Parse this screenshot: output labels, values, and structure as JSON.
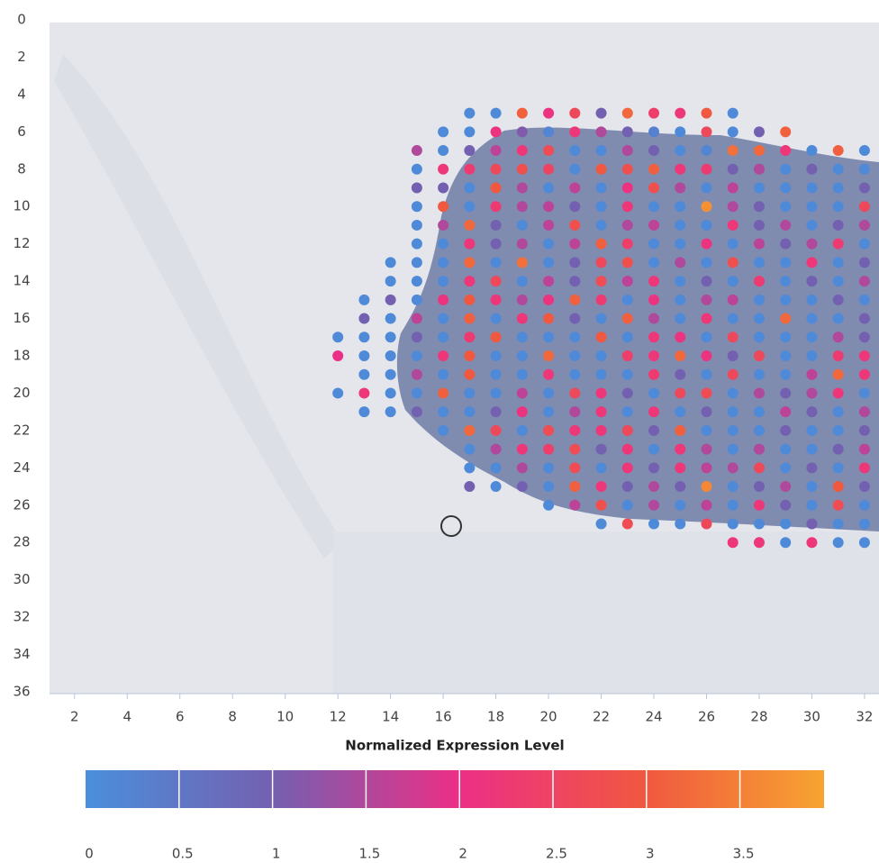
{
  "chart_data": {
    "type": "scatter",
    "xlim": [
      1.05,
      32.55
    ],
    "ylim": [
      0,
      36
    ],
    "xticks": [
      2,
      4,
      6,
      8,
      10,
      12,
      14,
      16,
      18,
      20,
      22,
      24,
      26,
      28,
      30,
      32
    ],
    "yticks": [
      0,
      2,
      4,
      6,
      8,
      10,
      12,
      14,
      16,
      18,
      20,
      22,
      24,
      26,
      28,
      30,
      32,
      34,
      36
    ],
    "colorbar": {
      "title": "Normalized Expression Level",
      "range": [
        0,
        3.95
      ],
      "ticks": [
        0,
        0.5,
        1,
        1.5,
        2,
        2.5,
        3,
        3.5
      ],
      "colorscale": [
        {
          "value": 0,
          "color": "#4a8fdc"
        },
        {
          "value": 1,
          "color": "#7460b0"
        },
        {
          "value": 2,
          "color": "#ec2f86"
        },
        {
          "value": 3,
          "color": "#f0583f"
        },
        {
          "value": 3.95,
          "color": "#f7a431"
        }
      ]
    },
    "rows": [
      {
        "y": 5,
        "x": [
          17,
          18,
          19,
          20,
          21,
          22,
          23,
          24,
          25,
          26,
          27
        ],
        "values": [
          0.1,
          0.1,
          3.1,
          2.1,
          2.6,
          1.0,
          3.2,
          2.4,
          2.2,
          3.0,
          0.1
        ]
      },
      {
        "y": 6,
        "x": [
          16,
          17,
          18,
          19,
          20,
          21,
          22,
          23,
          24,
          25,
          26,
          27,
          28,
          29
        ],
        "values": [
          0.1,
          0.1,
          2.1,
          1.1,
          0.2,
          2.2,
          1.5,
          1.0,
          0.3,
          0.1,
          2.6,
          0.1,
          1.0,
          3.1
        ]
      },
      {
        "y": 7,
        "x": [
          15,
          16,
          17,
          18,
          19,
          20,
          21,
          22,
          23,
          24,
          25,
          26,
          27,
          28,
          29,
          30,
          31,
          32
        ],
        "values": [
          1.5,
          0.1,
          1.0,
          1.6,
          2.2,
          2.7,
          0.1,
          0.1,
          1.5,
          1.0,
          0.1,
          0.2,
          3.3,
          3.2,
          2.2,
          0.1,
          3.1,
          0.1
        ]
      },
      {
        "y": 8,
        "x": [
          15,
          16,
          17,
          18,
          19,
          20,
          21,
          22,
          23,
          24,
          25,
          26,
          27,
          28,
          29,
          30,
          31,
          32
        ],
        "values": [
          0.1,
          2.2,
          2.3,
          2.6,
          2.8,
          2.5,
          0.1,
          3.0,
          2.8,
          3.1,
          2.2,
          2.3,
          1.0,
          1.5,
          0.1,
          1.0,
          0.1,
          0.1
        ]
      },
      {
        "y": 9,
        "x": [
          15,
          16,
          17,
          18,
          19,
          20,
          21,
          22,
          23,
          24,
          25,
          26,
          27,
          28,
          29,
          30,
          31,
          32
        ],
        "values": [
          1.0,
          1.0,
          0.1,
          3.0,
          1.5,
          0.1,
          1.6,
          0.1,
          2.1,
          2.8,
          1.5,
          0.1,
          1.6,
          0.1,
          0.1,
          0.1,
          0.1,
          1.0
        ]
      },
      {
        "y": 10,
        "x": [
          15,
          16,
          17,
          18,
          19,
          20,
          21,
          22,
          23,
          24,
          25,
          26,
          27,
          28,
          29,
          30,
          31,
          32
        ],
        "values": [
          0.1,
          3.0,
          0.1,
          2.3,
          1.5,
          1.6,
          1.0,
          0.1,
          2.2,
          0.1,
          0.1,
          3.7,
          1.5,
          1.0,
          0.1,
          0.1,
          0.1,
          2.6
        ]
      },
      {
        "y": 11,
        "x": [
          15,
          16,
          17,
          18,
          19,
          20,
          21,
          22,
          23,
          24,
          25,
          26,
          27,
          28,
          29,
          30,
          31,
          32
        ],
        "values": [
          0.1,
          1.5,
          3.2,
          1.0,
          0.1,
          1.6,
          2.8,
          0.1,
          1.5,
          1.6,
          0.1,
          0.1,
          2.2,
          1.0,
          1.5,
          0.1,
          1.0,
          1.5
        ]
      },
      {
        "y": 12,
        "x": [
          15,
          16,
          17,
          18,
          19,
          20,
          21,
          22,
          23,
          24,
          25,
          26,
          27,
          28,
          29,
          30,
          31,
          32
        ],
        "values": [
          0.1,
          0.1,
          2.2,
          1.0,
          1.5,
          0.1,
          1.6,
          3.1,
          2.4,
          0.1,
          0.1,
          2.1,
          0.1,
          1.6,
          1.0,
          1.5,
          2.3,
          0.1
        ]
      },
      {
        "y": 13,
        "x": [
          14,
          15,
          16,
          17,
          18,
          19,
          20,
          21,
          22,
          23,
          24,
          25,
          26,
          27,
          28,
          29,
          30,
          31,
          32
        ],
        "values": [
          0.1,
          0.1,
          0.1,
          3.2,
          0.1,
          3.3,
          0.1,
          1.0,
          2.6,
          2.8,
          0.1,
          1.5,
          0.1,
          2.8,
          0.1,
          0.1,
          2.2,
          0.1,
          1.0
        ]
      },
      {
        "y": 14,
        "x": [
          14,
          15,
          16,
          17,
          18,
          19,
          20,
          21,
          22,
          23,
          24,
          25,
          26,
          27,
          28,
          29,
          30,
          31,
          32
        ],
        "values": [
          0.1,
          0.1,
          0.1,
          2.2,
          2.6,
          0.1,
          1.6,
          1.0,
          2.7,
          1.6,
          2.2,
          0.1,
          1.0,
          0.1,
          2.3,
          0.1,
          1.0,
          0.1,
          1.5
        ]
      },
      {
        "y": 15,
        "x": [
          13,
          14,
          15,
          16,
          17,
          18,
          19,
          20,
          21,
          22,
          23,
          24,
          25,
          26,
          27,
          28,
          29,
          30,
          31,
          32
        ],
        "values": [
          0.1,
          1.0,
          0.1,
          2.1,
          3.0,
          2.2,
          1.5,
          2.1,
          3.1,
          2.3,
          0.1,
          2.1,
          0.1,
          1.5,
          1.6,
          0.1,
          0.1,
          0.1,
          1.0,
          0.1
        ]
      },
      {
        "y": 16,
        "x": [
          13,
          14,
          15,
          16,
          17,
          18,
          19,
          20,
          21,
          22,
          23,
          24,
          25,
          26,
          27,
          28,
          29,
          30,
          31,
          32
        ],
        "values": [
          1.0,
          0.1,
          1.6,
          0.1,
          3.1,
          0.1,
          2.2,
          3.0,
          1.0,
          0.1,
          3.1,
          1.5,
          0.1,
          2.2,
          0.1,
          0.1,
          3.2,
          0.1,
          0.1,
          1.0
        ]
      },
      {
        "y": 17,
        "x": [
          12,
          13,
          14,
          15,
          16,
          17,
          18,
          19,
          20,
          21,
          22,
          23,
          24,
          25,
          26,
          27,
          28,
          29,
          30,
          31,
          32
        ],
        "values": [
          0.1,
          0.1,
          0.1,
          1.0,
          0.1,
          2.3,
          3.0,
          0.1,
          0.1,
          0.1,
          3.0,
          0.1,
          2.2,
          2.1,
          0.1,
          2.6,
          0.1,
          0.1,
          0.1,
          1.5,
          1.0
        ]
      },
      {
        "y": 18,
        "x": [
          12,
          13,
          14,
          15,
          16,
          17,
          18,
          19,
          20,
          21,
          22,
          23,
          24,
          25,
          26,
          27,
          28,
          29,
          30,
          31,
          32
        ],
        "values": [
          2.0,
          0.1,
          0.1,
          0.1,
          2.2,
          3.0,
          0.1,
          0.1,
          3.2,
          0.1,
          0.1,
          2.4,
          2.2,
          3.2,
          2.1,
          1.0,
          2.6,
          0.1,
          0.1,
          2.3,
          2.2
        ]
      },
      {
        "y": 19,
        "x": [
          13,
          14,
          15,
          16,
          17,
          18,
          19,
          20,
          21,
          22,
          23,
          24,
          25,
          26,
          27,
          28,
          29,
          30,
          31,
          32
        ],
        "values": [
          0.1,
          0.1,
          1.5,
          0.1,
          3.0,
          0.1,
          0.1,
          2.2,
          0.1,
          0.1,
          0.1,
          2.3,
          1.0,
          0.1,
          2.6,
          0.1,
          0.1,
          1.6,
          3.2,
          2.2
        ]
      },
      {
        "y": 20,
        "x": [
          12,
          13,
          14,
          15,
          16,
          17,
          18,
          19,
          20,
          21,
          22,
          23,
          24,
          25,
          26,
          27,
          28,
          29,
          30,
          31,
          32
        ],
        "values": [
          0.1,
          2.2,
          0.1,
          0.1,
          3.1,
          0.1,
          0.1,
          1.6,
          0.1,
          2.6,
          2.2,
          1.0,
          0.1,
          2.6,
          2.7,
          0.1,
          1.5,
          1.0,
          1.5,
          2.2,
          0.1
        ]
      },
      {
        "y": 21,
        "x": [
          13,
          14,
          15,
          16,
          17,
          18,
          19,
          20,
          21,
          22,
          23,
          24,
          25,
          26,
          27,
          28,
          29,
          30,
          31,
          32
        ],
        "values": [
          0.1,
          0.1,
          1.0,
          0.1,
          0.1,
          1.0,
          2.1,
          0.1,
          1.5,
          2.2,
          0.1,
          2.2,
          0.1,
          1.0,
          0.1,
          0.1,
          1.6,
          1.0,
          0.1,
          1.5
        ]
      },
      {
        "y": 22,
        "x": [
          16,
          17,
          18,
          19,
          20,
          21,
          22,
          23,
          24,
          25,
          26,
          27,
          28,
          29,
          30,
          31,
          32
        ],
        "values": [
          0.1,
          3.2,
          2.6,
          0.1,
          2.7,
          2.2,
          2.2,
          2.6,
          1.0,
          3.1,
          0.1,
          0.1,
          0.1,
          1.0,
          0.1,
          0.1,
          1.0
        ]
      },
      {
        "y": 23,
        "x": [
          17,
          18,
          19,
          20,
          21,
          22,
          23,
          24,
          25,
          26,
          27,
          28,
          29,
          30,
          31,
          32
        ],
        "values": [
          0.1,
          1.5,
          2.2,
          2.4,
          2.7,
          1.0,
          2.2,
          0.1,
          2.2,
          1.5,
          0.1,
          1.5,
          0.1,
          0.1,
          1.0,
          1.6
        ]
      },
      {
        "y": 24,
        "x": [
          17,
          18,
          19,
          20,
          21,
          22,
          23,
          24,
          25,
          26,
          27,
          28,
          29,
          30,
          31,
          32
        ],
        "values": [
          0.1,
          0.1,
          1.5,
          0.1,
          2.7,
          0.1,
          2.2,
          1.0,
          2.2,
          1.6,
          1.5,
          2.6,
          0.1,
          1.0,
          0.1,
          2.2
        ]
      },
      {
        "y": 25,
        "x": [
          17,
          18,
          19,
          20,
          21,
          22,
          23,
          24,
          25,
          26,
          27,
          28,
          29,
          30,
          31,
          32
        ],
        "values": [
          1.0,
          0.1,
          1.0,
          0.1,
          3.1,
          2.2,
          1.0,
          1.5,
          1.0,
          3.6,
          0.1,
          1.0,
          1.5,
          0.1,
          3.0,
          1.0
        ]
      },
      {
        "y": 26,
        "x": [
          20,
          21,
          22,
          23,
          24,
          25,
          26,
          27,
          28,
          29,
          30,
          31,
          32
        ],
        "values": [
          0.1,
          1.6,
          2.8,
          0.1,
          1.5,
          0.1,
          1.6,
          0.1,
          2.2,
          1.0,
          0.1,
          2.7,
          0.1
        ]
      },
      {
        "y": 27,
        "x": [
          22,
          23,
          24,
          25,
          26,
          27,
          28,
          29,
          30,
          31,
          32
        ],
        "values": [
          0.1,
          2.7,
          0.1,
          0.1,
          2.6,
          0.1,
          0.1,
          0.1,
          1.0,
          0.1,
          0.1
        ]
      },
      {
        "y": 28,
        "x": [
          27,
          28,
          29,
          30,
          31,
          32
        ],
        "values": [
          2.2,
          2.2,
          0.1,
          2.2,
          0.1,
          0.1
        ]
      }
    ]
  }
}
